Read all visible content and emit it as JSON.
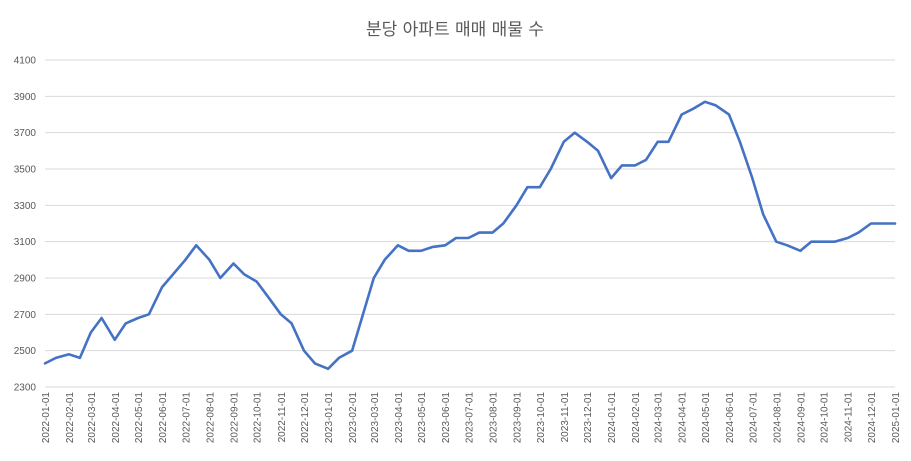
{
  "chart_data": {
    "type": "line",
    "title": "분당 아파트 매매 매물 수",
    "xlabel": "",
    "ylabel": "",
    "ylim": [
      2300,
      4100
    ],
    "yticks": [
      2300,
      2500,
      2700,
      2900,
      3100,
      3300,
      3500,
      3700,
      3900,
      4100
    ],
    "grid": true,
    "legend": "none",
    "colors": {
      "series": "#4472c4",
      "grid": "#d9d9d9",
      "text": "#595959"
    },
    "x_tick_labels": [
      "2022-01-01",
      "2022-02-01",
      "2022-03-01",
      "2022-04-01",
      "2022-05-01",
      "2022-06-01",
      "2022-07-01",
      "2022-08-01",
      "2022-09-01",
      "2022-10-01",
      "2022-11-01",
      "2022-12-01",
      "2023-01-01",
      "2023-02-01",
      "2023-03-01",
      "2023-04-01",
      "2023-05-01",
      "2023-06-01",
      "2023-07-01",
      "2023-08-01",
      "2023-09-01",
      "2023-10-01",
      "2023-11-01",
      "2023-12-01",
      "2024-01-01",
      "2024-02-01",
      "2024-03-01",
      "2024-04-01",
      "2024-05-01",
      "2024-06-01",
      "2024-07-01",
      "2024-08-01",
      "2024-09-01",
      "2024-10-01",
      "2024-11-01",
      "2024-12-01",
      "2025-01-01"
    ],
    "x_range": [
      "2022-01-01",
      "2025-01-01"
    ],
    "series": [
      {
        "x": [
          "2022-01-01",
          "2022-01-15",
          "2022-02-01",
          "2022-02-15",
          "2022-03-01",
          "2022-03-15",
          "2022-04-01",
          "2022-04-15",
          "2022-05-01",
          "2022-05-15",
          "2022-06-01",
          "2022-06-15",
          "2022-07-01",
          "2022-07-15",
          "2022-08-01",
          "2022-08-15",
          "2022-09-01",
          "2022-09-15",
          "2022-10-01",
          "2022-10-15",
          "2022-11-01",
          "2022-11-15",
          "2022-12-01",
          "2022-12-15",
          "2023-01-01",
          "2023-01-15",
          "2023-02-01",
          "2023-02-15",
          "2023-03-01",
          "2023-03-15",
          "2023-04-01",
          "2023-04-15",
          "2023-05-01",
          "2023-05-15",
          "2023-06-01",
          "2023-06-15",
          "2023-07-01",
          "2023-07-15",
          "2023-08-01",
          "2023-08-15",
          "2023-09-01",
          "2023-09-15",
          "2023-10-01",
          "2023-10-15",
          "2023-11-01",
          "2023-11-15",
          "2023-12-01",
          "2023-12-15",
          "2024-01-01",
          "2024-01-15",
          "2024-02-01",
          "2024-02-15",
          "2024-03-01",
          "2024-03-15",
          "2024-04-01",
          "2024-04-15",
          "2024-05-01",
          "2024-05-15",
          "2024-06-01",
          "2024-06-15",
          "2024-07-01",
          "2024-07-15",
          "2024-08-01",
          "2024-08-15",
          "2024-09-01",
          "2024-09-15",
          "2024-10-01",
          "2024-10-15",
          "2024-11-01",
          "2024-11-15",
          "2024-12-01",
          "2024-12-15",
          "2025-01-01"
        ],
        "values": [
          2430,
          2460,
          2480,
          2460,
          2600,
          2680,
          2560,
          2650,
          2680,
          2700,
          2850,
          2920,
          3000,
          3080,
          3000,
          2900,
          2980,
          2920,
          2880,
          2800,
          2700,
          2650,
          2500,
          2430,
          2400,
          2460,
          2500,
          2700,
          2900,
          3000,
          3080,
          3050,
          3050,
          3070,
          3080,
          3120,
          3120,
          3150,
          3150,
          3200,
          3300,
          3400,
          3400,
          3500,
          3650,
          3700,
          3650,
          3600,
          3450,
          3520,
          3520,
          3550,
          3650,
          3650,
          3800,
          3830,
          3870,
          3850,
          3800,
          3650,
          3450,
          3250,
          3100,
          3080,
          3050,
          3100,
          3100,
          3100,
          3120,
          3150,
          3200,
          3200,
          3200
        ]
      }
    ]
  }
}
